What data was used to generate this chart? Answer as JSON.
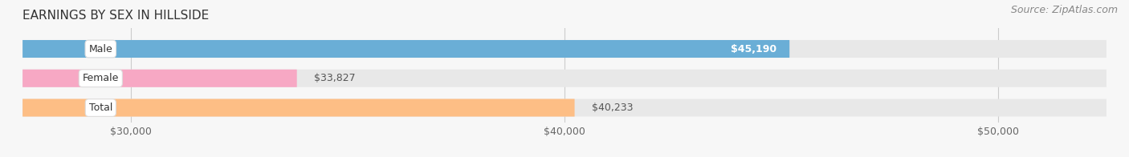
{
  "title": "EARNINGS BY SEX IN HILLSIDE",
  "source": "Source: ZipAtlas.com",
  "categories": [
    "Male",
    "Female",
    "Total"
  ],
  "values": [
    45190,
    33827,
    40233
  ],
  "bar_colors": [
    "#6aaed6",
    "#f7a8c4",
    "#fdbe85"
  ],
  "label_inside": [
    true,
    false,
    false
  ],
  "label_text_colors_inside": "#ffffff",
  "label_text_colors_outside": "#555555",
  "x_min": 27500,
  "x_max": 52500,
  "x_ticks": [
    30000,
    40000,
    50000
  ],
  "x_tick_labels": [
    "$30,000",
    "$40,000",
    "$50,000"
  ],
  "title_fontsize": 11,
  "source_fontsize": 9,
  "tick_fontsize": 9,
  "bar_label_fontsize": 9,
  "category_fontsize": 9,
  "background_color": "#f7f7f7",
  "bar_background_color": "#e8e8e8",
  "bar_height": 0.6,
  "bar_spacing": 1.0
}
